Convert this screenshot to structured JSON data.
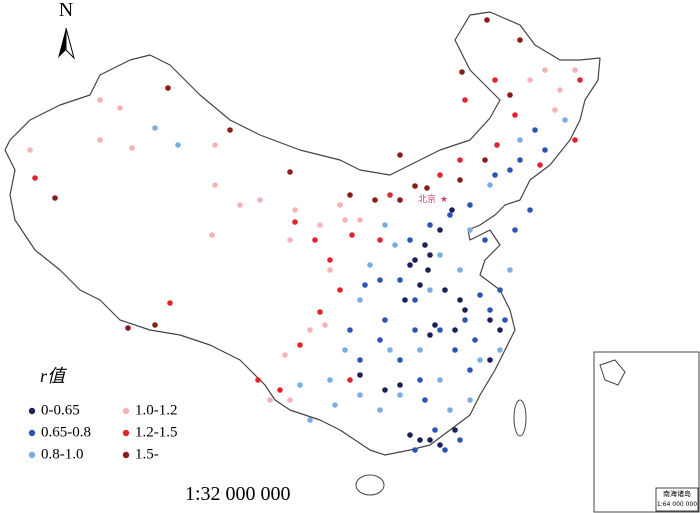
{
  "north": "N",
  "capital": "北京",
  "scale": "1:32 000 000",
  "legend": {
    "title": "r值",
    "items": [
      {
        "label": "0-0.65",
        "color": "#1b2059"
      },
      {
        "label": "0.65-0.8",
        "color": "#2a55b5"
      },
      {
        "label": "0.8-1.0",
        "color": "#7aaee2"
      },
      {
        "label": "1.0-1.2",
        "color": "#f4b3b6"
      },
      {
        "label": "1.2-1.5",
        "color": "#e0262c"
      },
      {
        "label": "1.5-",
        "color": "#8a1c1c"
      }
    ]
  },
  "inset": {
    "title": "南海诸岛",
    "scale": "1:64 000 000"
  }
}
